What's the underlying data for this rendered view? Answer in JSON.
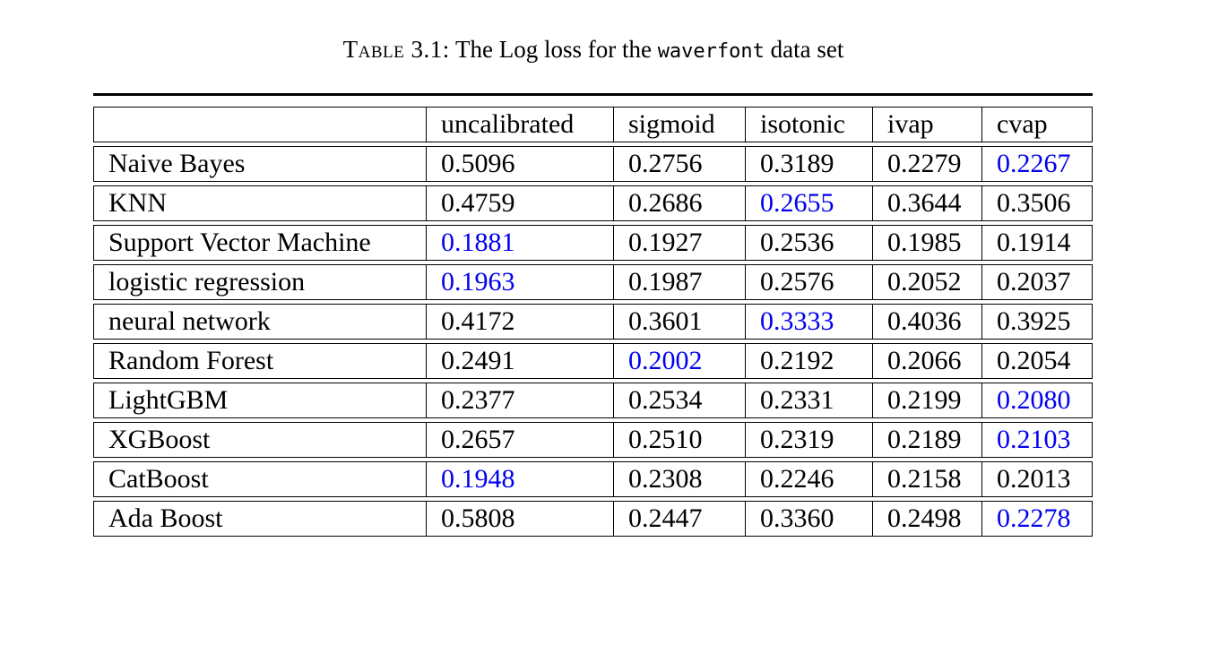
{
  "caption": {
    "label": "Table 3.1:",
    "text_before": "The Log loss for the",
    "dataset": "waverfont",
    "text_after": "data set"
  },
  "table": {
    "columns": [
      "",
      "uncalibrated",
      "sigmoid",
      "isotonic",
      "ivap",
      "cvap"
    ],
    "rows": [
      {
        "name": "Naive Bayes",
        "values": [
          "0.5096",
          "0.2756",
          "0.3189",
          "0.2279",
          "0.2267"
        ],
        "best_index": 4
      },
      {
        "name": "KNN",
        "values": [
          "0.4759",
          "0.2686",
          "0.2655",
          "0.3644",
          "0.3506"
        ],
        "best_index": 2
      },
      {
        "name": "Support Vector Machine",
        "values": [
          "0.1881",
          "0.1927",
          "0.2536",
          "0.1985",
          "0.1914"
        ],
        "best_index": 0
      },
      {
        "name": "logistic regression",
        "values": [
          "0.1963",
          "0.1987",
          "0.2576",
          "0.2052",
          "0.2037"
        ],
        "best_index": 0
      },
      {
        "name": "neural network",
        "values": [
          "0.4172",
          "0.3601",
          "0.3333",
          "0.4036",
          "0.3925"
        ],
        "best_index": 2
      },
      {
        "name": "Random Forest",
        "values": [
          "0.2491",
          "0.2002",
          "0.2192",
          "0.2066",
          "0.2054"
        ],
        "best_index": 1
      },
      {
        "name": "LightGBM",
        "values": [
          "0.2377",
          "0.2534",
          "0.2331",
          "0.2199",
          "0.2080"
        ],
        "best_index": 4
      },
      {
        "name": "XGBoost",
        "values": [
          "0.2657",
          "0.2510",
          "0.2319",
          "0.2189",
          "0.2103"
        ],
        "best_index": 4
      },
      {
        "name": "CatBoost",
        "values": [
          "0.1948",
          "0.2308",
          "0.2246",
          "0.2158",
          "0.2013"
        ],
        "best_index": 0
      },
      {
        "name": "Ada Boost",
        "values": [
          "0.5808",
          "0.2447",
          "0.3360",
          "0.2498",
          "0.2278"
        ],
        "best_index": 4
      }
    ]
  },
  "colors": {
    "highlight": "#0000ee",
    "text": "#000000",
    "rule": "#000000"
  }
}
